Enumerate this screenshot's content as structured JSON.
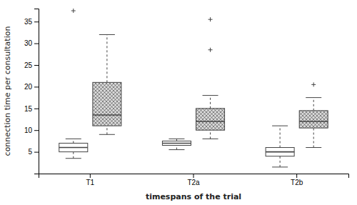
{
  "chart_data": {
    "type": "box",
    "xlabel": "timespans of the trial",
    "ylabel": "connection time per consultation",
    "categories": [
      "T1",
      "T2a",
      "T2b"
    ],
    "series": [
      {
        "color": "#ffffff",
        "medians": [
          6.0,
          7.0,
          5.0
        ],
        "q1": [
          5.0,
          6.5,
          4.0
        ],
        "q3": [
          7.0,
          7.5,
          6.0
        ],
        "whislo": [
          3.5,
          5.5,
          1.5
        ],
        "whishi": [
          8.0,
          8.0,
          11.0
        ],
        "fliers": [
          [
            37.5
          ],
          [],
          []
        ]
      },
      {
        "color": "#d8d8d8",
        "medians": [
          13.5,
          12.0,
          12.0
        ],
        "q1": [
          11.0,
          10.0,
          10.5
        ],
        "q3": [
          21.0,
          15.0,
          14.5
        ],
        "whislo": [
          9.0,
          8.0,
          6.0
        ],
        "whishi": [
          32.0,
          18.0,
          17.5
        ],
        "fliers": [
          [],
          [
            35.5,
            28.5
          ],
          [
            20.5
          ]
        ]
      }
    ],
    "ylim": [
      0,
      38
    ],
    "yticks": [
      5,
      10,
      15,
      20,
      25,
      30,
      35
    ],
    "marker": "plus",
    "line_style": "dashed",
    "grid": false
  }
}
